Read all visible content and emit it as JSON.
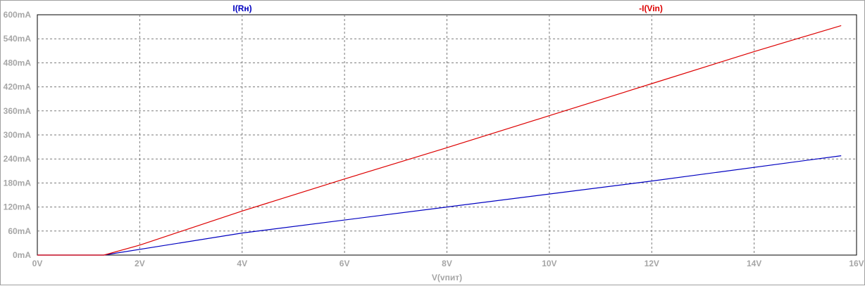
{
  "chart_data": {
    "type": "line",
    "xlabel": "V(vпит)",
    "x_ticks": [
      "0V",
      "2V",
      "4V",
      "6V",
      "8V",
      "10V",
      "12V",
      "14V",
      "16V"
    ],
    "y_ticks": [
      "0mA",
      "60mA",
      "120mA",
      "180mA",
      "240mA",
      "300mA",
      "360mA",
      "420mA",
      "480mA",
      "540mA",
      "600mA"
    ],
    "xlim": [
      0,
      16
    ],
    "ylim": [
      0,
      600
    ],
    "grid": true,
    "series": [
      {
        "name": "I(Rн)",
        "color": "#0000c0",
        "x": [
          0,
          1.3,
          4,
          8,
          12,
          15.7
        ],
        "y": [
          0,
          0,
          55,
          120,
          185,
          248
        ]
      },
      {
        "name": "-I(Vin)",
        "color": "#dd0000",
        "x": [
          0,
          1.3,
          2,
          4,
          6,
          8,
          10,
          12,
          14,
          15.7
        ],
        "y": [
          0,
          0,
          25,
          110,
          190,
          268,
          348,
          428,
          508,
          573
        ]
      }
    ]
  }
}
